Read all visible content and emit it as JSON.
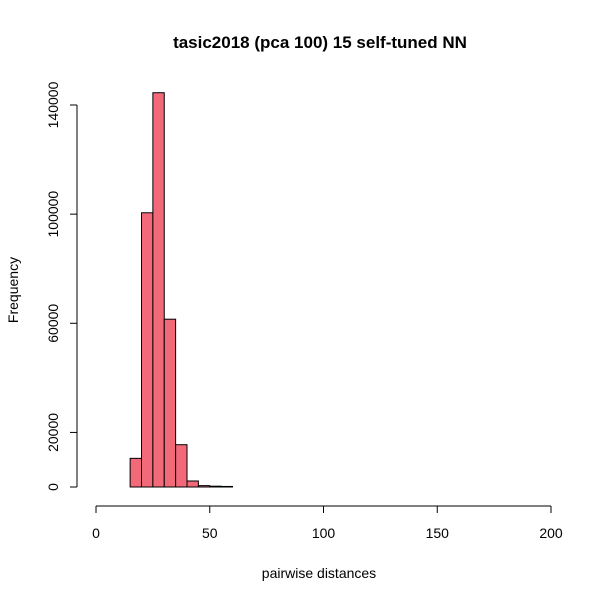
{
  "chart_data": {
    "type": "bar",
    "title": "tasic2018 (pca 100) 15 self-tuned NN",
    "xlabel": "pairwise distances",
    "ylabel": "Frequency",
    "bar_color": "#F2697A",
    "xlim": [
      0,
      200
    ],
    "ylim": [
      0,
      140000
    ],
    "x_ticks": [
      0,
      50,
      100,
      150,
      200
    ],
    "y_ticks": [
      0,
      20000,
      60000,
      100000,
      140000
    ],
    "bins": [
      {
        "start": 15,
        "end": 20,
        "value": 10500
      },
      {
        "start": 20,
        "end": 25,
        "value": 100500
      },
      {
        "start": 25,
        "end": 30,
        "value": 144500
      },
      {
        "start": 30,
        "end": 35,
        "value": 61500
      },
      {
        "start": 35,
        "end": 40,
        "value": 15500
      },
      {
        "start": 40,
        "end": 45,
        "value": 2200
      },
      {
        "start": 45,
        "end": 50,
        "value": 500
      },
      {
        "start": 50,
        "end": 55,
        "value": 300
      },
      {
        "start": 55,
        "end": 60,
        "value": 200
      },
      {
        "start": 60,
        "end": 65,
        "value": 0
      },
      {
        "start": 65,
        "end": 70,
        "value": 0
      },
      {
        "start": 70,
        "end": 75,
        "value": 0
      },
      {
        "start": 75,
        "end": 80,
        "value": 0
      },
      {
        "start": 80,
        "end": 85,
        "value": 0
      },
      {
        "start": 85,
        "end": 90,
        "value": 0
      },
      {
        "start": 90,
        "end": 95,
        "value": 0
      },
      {
        "start": 95,
        "end": 100,
        "value": 0
      },
      {
        "start": 100,
        "end": 105,
        "value": 0
      },
      {
        "start": 105,
        "end": 110,
        "value": 0
      },
      {
        "start": 110,
        "end": 115,
        "value": 0
      },
      {
        "start": 115,
        "end": 120,
        "value": 0
      },
      {
        "start": 120,
        "end": 125,
        "value": 0
      },
      {
        "start": 125,
        "end": 130,
        "value": 0
      },
      {
        "start": 130,
        "end": 135,
        "value": 0
      },
      {
        "start": 135,
        "end": 140,
        "value": 0
      },
      {
        "start": 140,
        "end": 145,
        "value": 0
      },
      {
        "start": 145,
        "end": 150,
        "value": 0
      },
      {
        "start": 150,
        "end": 155,
        "value": 0
      },
      {
        "start": 155,
        "end": 160,
        "value": 0
      },
      {
        "start": 160,
        "end": 165,
        "value": 0
      },
      {
        "start": 165,
        "end": 170,
        "value": 0
      },
      {
        "start": 170,
        "end": 175,
        "value": 0
      },
      {
        "start": 175,
        "end": 180,
        "value": 0
      },
      {
        "start": 180,
        "end": 185,
        "value": 0
      },
      {
        "start": 185,
        "end": 190,
        "value": 0
      },
      {
        "start": 190,
        "end": 195,
        "value": 0
      }
    ]
  }
}
